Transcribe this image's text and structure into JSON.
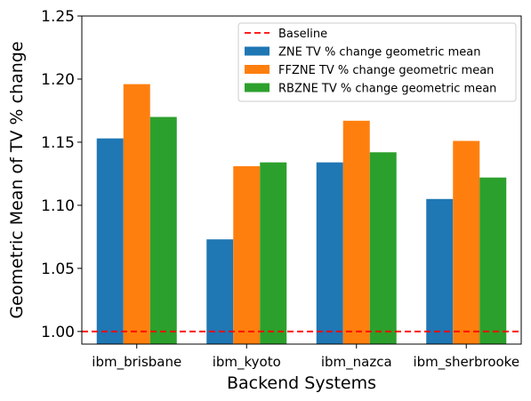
{
  "chart_data": {
    "type": "bar",
    "title": "",
    "xlabel": "Backend Systems",
    "ylabel": "Geometric Mean of TV % change",
    "ylim": [
      0.99,
      1.25
    ],
    "yticks": [
      "1.00",
      "1.05",
      "1.10",
      "1.15",
      "1.20",
      "1.25"
    ],
    "categories": [
      "ibm_brisbane",
      "ibm_kyoto",
      "ibm_nazca",
      "ibm_sherbrooke"
    ],
    "series": [
      {
        "name": "ZNE TV % change geometric mean",
        "color": "#1f77b4",
        "values": [
          1.153,
          1.073,
          1.134,
          1.105
        ]
      },
      {
        "name": "FFZNE TV % change geometric mean",
        "color": "#ff7f0e",
        "values": [
          1.196,
          1.131,
          1.167,
          1.151
        ]
      },
      {
        "name": "RBZNE TV % change geometric mean",
        "color": "#2ca02c",
        "values": [
          1.17,
          1.134,
          1.142,
          1.122
        ]
      }
    ],
    "baseline": {
      "name": "Baseline",
      "value": 1.0,
      "color": "#ff0000",
      "style": "dashed"
    },
    "legend_position": "top-right",
    "grid": false
  }
}
